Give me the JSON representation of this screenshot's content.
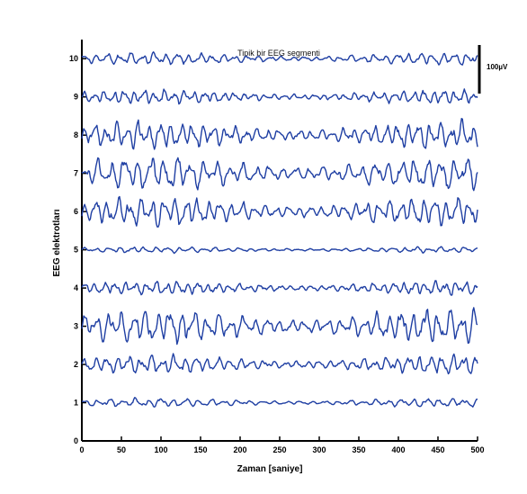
{
  "chart_data": {
    "type": "line",
    "title": "Tipik bir EEG segmenti",
    "xlabel": "Zaman [saniye]",
    "ylabel": "EEG elektrotları",
    "xlim": [
      0,
      500
    ],
    "ylim": [
      0,
      10.5
    ],
    "x_ticks": [
      "0",
      "50",
      "100",
      "150",
      "200",
      "250",
      "300",
      "350",
      "400",
      "450",
      "500"
    ],
    "y_ticks": [
      "0",
      "1",
      "2",
      "3",
      "4",
      "5",
      "6",
      "7",
      "8",
      "9",
      "10"
    ],
    "scale_bar_label": "100µV",
    "grid": false,
    "legend": "none",
    "line_color": "#1f3fa3",
    "series": [
      {
        "name": "1",
        "amplitude": 0.1,
        "freq": 7.5,
        "seed": 11
      },
      {
        "name": "2",
        "amplitude": 0.22,
        "freq": 8.5,
        "seed": 23
      },
      {
        "name": "3",
        "amplitude": 0.4,
        "freq": 7.8,
        "seed": 37
      },
      {
        "name": "4",
        "amplitude": 0.16,
        "freq": 9.2,
        "seed": 41
      },
      {
        "name": "5",
        "amplitude": 0.07,
        "freq": 8.0,
        "seed": 53
      },
      {
        "name": "6",
        "amplitude": 0.34,
        "freq": 8.4,
        "seed": 67
      },
      {
        "name": "7",
        "amplitude": 0.38,
        "freq": 7.2,
        "seed": 71
      },
      {
        "name": "8",
        "amplitude": 0.32,
        "freq": 8.8,
        "seed": 83
      },
      {
        "name": "9",
        "amplitude": 0.16,
        "freq": 9.5,
        "seed": 97
      },
      {
        "name": "10",
        "amplitude": 0.14,
        "freq": 8.2,
        "seed": 101
      }
    ]
  }
}
